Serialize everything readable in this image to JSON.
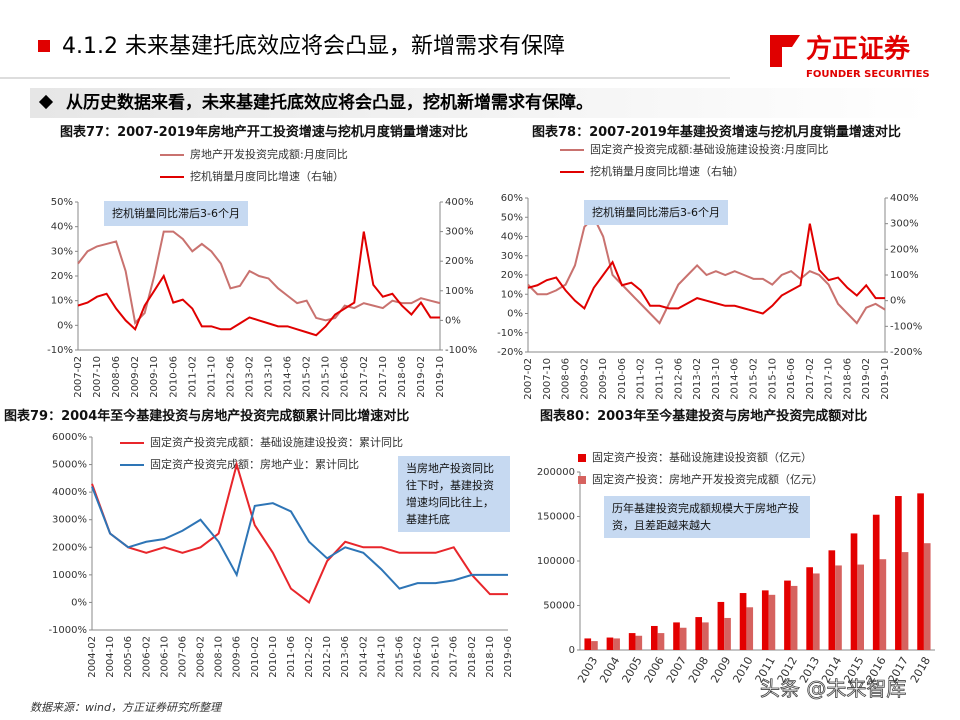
{
  "header": {
    "title": "4.1.2 未来基建托底效应将会凸显，新增需求有保障",
    "logo": "方正证券",
    "logo_sub": "FOUNDER SECURITIES",
    "subtitle": "从历史数据来看，未来基建托底效应将会凸显，挖机新增需求有保障。"
  },
  "chart_data": [
    {
      "type": "line",
      "title": "图表77：2007-2019年房地产开工投资增速与挖机月度销量增速对比",
      "annotation": "挖机销量同比滞后3-6个月",
      "categories": [
        "2007-02",
        null,
        "2007-10",
        null,
        "2008-06",
        null,
        "2009-02",
        null,
        "2009-10",
        null,
        "2010-06",
        null,
        "2011-02",
        null,
        "2011-10",
        null,
        "2012-06",
        null,
        "2013-02",
        null,
        "2013-10",
        null,
        "2014-06",
        null,
        "2015-02",
        null,
        "2015-10",
        null,
        "2016-06",
        null,
        "2017-02",
        null,
        "2017-10",
        null,
        "2018-06",
        null,
        "2019-02",
        null,
        "2019-10"
      ],
      "series": [
        {
          "name": "房地产开发投资完成额:月度同比",
          "color": "#c9726f",
          "values": [
            25,
            30,
            32,
            33,
            34,
            22,
            1,
            5,
            20,
            38,
            38,
            35,
            30,
            33,
            30,
            25,
            15,
            16,
            22,
            20,
            19,
            15,
            12,
            9,
            10,
            3,
            2,
            3,
            8,
            7,
            9,
            8,
            7,
            10,
            9,
            9,
            11,
            10,
            9
          ]
        },
        {
          "name": "挖机销量月度同比增速（右轴）",
          "color": "#e00000",
          "axis": "y2",
          "values": [
            50,
            60,
            80,
            90,
            40,
            0,
            -30,
            50,
            100,
            150,
            60,
            70,
            40,
            -20,
            -20,
            -30,
            -30,
            -10,
            10,
            0,
            -10,
            -20,
            -20,
            -30,
            -40,
            -50,
            -20,
            20,
            40,
            60,
            300,
            120,
            80,
            90,
            50,
            20,
            60,
            10,
            10
          ]
        }
      ],
      "ylim": [
        -10,
        50
      ],
      "yticks": [
        {
          "value": -10,
          "label": "-10%"
        },
        {
          "value": 0,
          "label": "0%"
        },
        {
          "value": 10,
          "label": "10%"
        },
        {
          "value": 20,
          "label": "20%"
        },
        {
          "value": 30,
          "label": "30%"
        },
        {
          "value": 40,
          "label": "40%"
        },
        {
          "value": 50,
          "label": "50%"
        }
      ],
      "y2lim": [
        -100,
        400
      ],
      "y2ticks": [
        {
          "value": -100,
          "label": "-100%"
        },
        {
          "value": 0,
          "label": "0%"
        },
        {
          "value": 100,
          "label": "100%"
        },
        {
          "value": 200,
          "label": "200%"
        },
        {
          "value": 300,
          "label": "300%"
        },
        {
          "value": 400,
          "label": "400%"
        }
      ]
    },
    {
      "type": "line",
      "title": "图表78：2007-2019年基建投资增速与挖机月度销量增速对比",
      "annotation": "挖机销量同比滞后3-6个月",
      "categories": [
        "2007-02",
        null,
        "2007-10",
        null,
        "2008-06",
        null,
        "2009-02",
        null,
        "2009-10",
        null,
        "2010-06",
        null,
        "2011-02",
        null,
        "2011-10",
        null,
        "2012-06",
        null,
        "2013-02",
        null,
        "2013-10",
        null,
        "2014-06",
        null,
        "2015-02",
        null,
        "2015-10",
        null,
        "2016-06",
        null,
        "2017-02",
        null,
        "2017-10",
        null,
        "2018-06",
        null,
        "2019-02",
        null,
        "2019-10"
      ],
      "series": [
        {
          "name": "固定资产投资完成额:基础设施建设投资:月度同比",
          "color": "#c9726f",
          "values": [
            15,
            10,
            10,
            12,
            15,
            25,
            45,
            50,
            40,
            20,
            15,
            10,
            5,
            0,
            -5,
            5,
            15,
            20,
            25,
            20,
            22,
            20,
            22,
            20,
            18,
            18,
            15,
            20,
            22,
            18,
            22,
            20,
            15,
            5,
            0,
            -5,
            3,
            5,
            2
          ]
        },
        {
          "name": "挖机销量月度同比增速（右轴）",
          "color": "#e00000",
          "axis": "y2",
          "values": [
            50,
            60,
            80,
            90,
            40,
            0,
            -30,
            50,
            100,
            150,
            60,
            70,
            40,
            -20,
            -20,
            -30,
            -30,
            -10,
            10,
            0,
            -10,
            -20,
            -20,
            -30,
            -40,
            -50,
            -20,
            20,
            40,
            60,
            300,
            120,
            80,
            90,
            50,
            20,
            60,
            10,
            10
          ]
        }
      ],
      "ylim": [
        -20,
        60
      ],
      "yticks": [
        {
          "value": -20,
          "label": "-20%"
        },
        {
          "value": -10,
          "label": "-10%"
        },
        {
          "value": 0,
          "label": "0%"
        },
        {
          "value": 10,
          "label": "10%"
        },
        {
          "value": 20,
          "label": "20%"
        },
        {
          "value": 30,
          "label": "30%"
        },
        {
          "value": 40,
          "label": "40%"
        },
        {
          "value": 50,
          "label": "50%"
        },
        {
          "value": 60,
          "label": "60%"
        }
      ],
      "y2lim": [
        -200,
        400
      ],
      "y2ticks": [
        {
          "value": -200,
          "label": "-200%"
        },
        {
          "value": -100,
          "label": "-100%"
        },
        {
          "value": 0,
          "label": "0%"
        },
        {
          "value": 100,
          "label": "100%"
        },
        {
          "value": 200,
          "label": "200%"
        },
        {
          "value": 300,
          "label": "300%"
        },
        {
          "value": 400,
          "label": "400%"
        }
      ]
    },
    {
      "type": "line",
      "title": "图表79：2004年至今基建投资与房地产投资完成额累计同比增速对比",
      "annotation": "当房地产投资同比往下时，基建投资增速均同比往上，基建托底",
      "categories": [
        "2004-02",
        "2004-10",
        "2005-06",
        "2006-02",
        "2006-10",
        "2007-06",
        "2008-02",
        "2008-10",
        "2009-06",
        "2010-02",
        "2010-10",
        "2011-06",
        "2012-02",
        "2012-10",
        "2013-06",
        "2014-02",
        "2014-10",
        "2015-06",
        "2016-02",
        "2016-10",
        "2017-06",
        "2018-02",
        "2018-10",
        "2019-06"
      ],
      "series": [
        {
          "name": "固定资产投资完成额：基础设施建设投资：累计同比",
          "color": "#e8262b",
          "values": [
            4300,
            2500,
            2000,
            1800,
            2000,
            1800,
            2000,
            2500,
            5000,
            2800,
            1800,
            500,
            0,
            1500,
            2200,
            2000,
            2000,
            1800,
            1800,
            1800,
            2000,
            1000,
            300,
            300
          ]
        },
        {
          "name": "固定资产投资完成额：房地产业：累计同比",
          "color": "#2e75b6",
          "values": [
            4200,
            2500,
            2000,
            2200,
            2300,
            2600,
            3000,
            2200,
            1000,
            3500,
            3600,
            3300,
            2200,
            1600,
            2000,
            1800,
            1200,
            500,
            700,
            700,
            800,
            1000,
            1000,
            1000
          ]
        }
      ],
      "ylim": [
        -1000,
        6000
      ],
      "yticks": [
        {
          "value": -1000,
          "label": "-1000%"
        },
        {
          "value": 0,
          "label": "0%"
        },
        {
          "value": 1000,
          "label": "1000%"
        },
        {
          "value": 2000,
          "label": "2000%"
        },
        {
          "value": 3000,
          "label": "3000%"
        },
        {
          "value": 4000,
          "label": "4000%"
        },
        {
          "value": 5000,
          "label": "5000%"
        },
        {
          "value": 6000,
          "label": "6000%"
        }
      ]
    },
    {
      "type": "bar",
      "title": "图表80：2003年至今基建投资与房地产投资完成额对比",
      "annotation": "历年基建投资完成额规模大于房地产投资，且差距越来越大",
      "categories": [
        "2003",
        "2004",
        "2005",
        "2006",
        "2007",
        "2008",
        "2009",
        "2010",
        "2011",
        "2012",
        "2013",
        "2014",
        "2015",
        "2016",
        "2017",
        "2018"
      ],
      "series": [
        {
          "name": "固定资产投资：基础设施建设投资额（亿元）",
          "color": "#e30000",
          "values": [
            13000,
            14000,
            19000,
            27000,
            31000,
            37000,
            54000,
            64000,
            67000,
            78000,
            93000,
            112000,
            131000,
            152000,
            173000,
            176000
          ]
        },
        {
          "name": "固定资产投资：房地产开发投资完成额（亿元）",
          "color": "#d6625f",
          "values": [
            10000,
            13000,
            16000,
            19000,
            25000,
            31000,
            36000,
            48000,
            62000,
            72000,
            86000,
            95000,
            96000,
            102000,
            110000,
            120000
          ]
        }
      ],
      "ylim": [
        0,
        200000
      ],
      "yticks": [
        0,
        50000,
        100000,
        150000,
        200000
      ]
    }
  ],
  "footer": {
    "source": "数据来源：wind，方正证券研究所整理",
    "watermark": "头条 @未来智库"
  }
}
